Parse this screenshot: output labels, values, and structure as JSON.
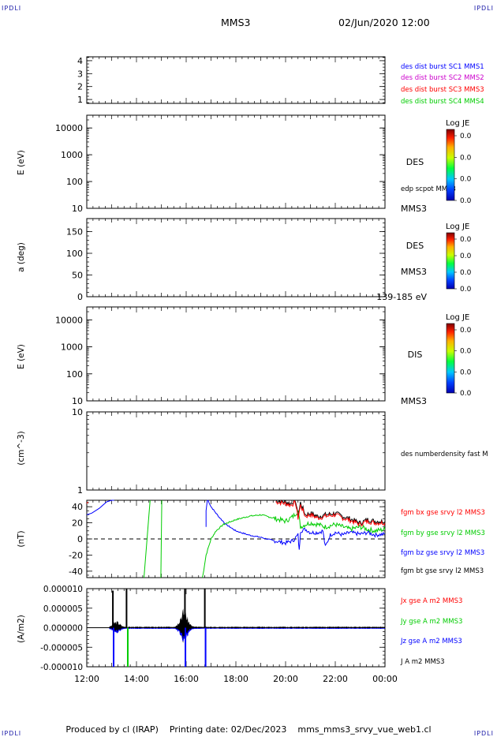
{
  "header": {
    "left_tag": "IPDLI",
    "right_tag": "IPDLI",
    "spacecraft": "MMS3",
    "datetime": "02/Jun/2020 12:00",
    "bottom_left_tag": "IPDLI",
    "bottom_right_tag": "IPDLI"
  },
  "footer": {
    "produced": "Produced by cl (IRAP)",
    "printing": "Printing date: 02/Dec/2023",
    "product": "mms_mms3_srvy_vue_web1.cl"
  },
  "time_axis": {
    "ticks": [
      "12:00",
      "14:00",
      "16:00",
      "18:00",
      "20:00",
      "22:00",
      "00:00"
    ],
    "range_hours": [
      12,
      24
    ]
  },
  "colors": {
    "mms1": "#0000ff",
    "mms2": "#cc00cc",
    "mms3": "#ff0000",
    "mms4": "#00cc00",
    "bx": "#ff0000",
    "by": "#00cc00",
    "bz": "#0000ff",
    "bt": "#000000"
  },
  "chart_data": [
    {
      "type": "line",
      "id": "burst",
      "ylabel": "",
      "yticks": [
        "4",
        "3",
        "2",
        "1"
      ],
      "yrange": [
        0.7,
        4.3
      ],
      "legend": [
        {
          "label": "des dist burst SC1 MMS1",
          "color": "#0000ff"
        },
        {
          "label": "des dist burst SC2 MMS2",
          "color": "#cc00cc"
        },
        {
          "label": "des dist burst SC3 MMS3",
          "color": "#ff0000"
        },
        {
          "label": "des dist burst SC4 MMS4",
          "color": "#00cc00"
        }
      ],
      "series": []
    },
    {
      "type": "heatmap",
      "id": "des_energy",
      "ylabel": "E (eV)",
      "yscale": "log",
      "yticks": [
        "10000",
        "1000",
        "100",
        "10"
      ],
      "yrange": [
        10,
        30000
      ],
      "right_labels": [
        "DES",
        "edp scpot MMS3",
        "MMS3"
      ],
      "colorbar": {
        "title": "Log JE",
        "ticks": [
          "0.0",
          "0.0",
          "0.0",
          "0.0"
        ]
      },
      "values": []
    },
    {
      "type": "heatmap",
      "id": "des_pitch",
      "ylabel": "a (deg)",
      "yticks": [
        "150",
        "100",
        "50",
        "0"
      ],
      "yrange": [
        0,
        180
      ],
      "right_labels": [
        "DES",
        "MMS3",
        "139-185 eV"
      ],
      "colorbar": {
        "title": "Log JE",
        "ticks": [
          "0.0",
          "0.0",
          "0.0",
          "0.0"
        ]
      },
      "values": []
    },
    {
      "type": "heatmap",
      "id": "dis_energy",
      "ylabel": "E (eV)",
      "yscale": "log",
      "yticks": [
        "10000",
        "1000",
        "100",
        "10"
      ],
      "yrange": [
        10,
        30000
      ],
      "right_labels": [
        "DIS",
        "MMS3"
      ],
      "colorbar": {
        "title": "Log JE",
        "ticks": [
          "0.0",
          "0.0",
          "0.0",
          "0.0"
        ]
      },
      "values": []
    },
    {
      "type": "line",
      "id": "density",
      "ylabel": "(cm^-3)",
      "yscale": "log",
      "yticks": [
        "10",
        "1"
      ],
      "yrange": [
        1,
        10
      ],
      "legend": [
        {
          "label": "des numberdensity fast M",
          "color": "#000000"
        }
      ],
      "series": []
    },
    {
      "type": "line",
      "id": "fgm",
      "ylabel": "(nT)",
      "yticks": [
        "40",
        "20",
        "0",
        "-20",
        "-40"
      ],
      "yrange": [
        -48,
        48
      ],
      "zero_line": true,
      "legend": [
        {
          "label": "fgm bx gse srvy l2 MMS3",
          "color": "#ff0000"
        },
        {
          "label": "fgm by gse srvy l2 MMS3",
          "color": "#00cc00"
        },
        {
          "label": "fgm bz gse srvy l2 MMS3",
          "color": "#0000ff"
        },
        {
          "label": "fgm bt gse srvy l2 MMS3",
          "color": "#000000"
        }
      ],
      "series": [
        {
          "key": "bz",
          "color": "#0000ff",
          "x": [
            12.0,
            12.2,
            12.5,
            12.8,
            13.0,
            13.1
          ],
          "y": [
            30,
            32,
            38,
            46,
            50,
            52
          ]
        },
        {
          "key": "by",
          "color": "#00cc00",
          "x": [
            14.3,
            14.4,
            14.5,
            14.55
          ],
          "y": [
            -50,
            -10,
            30,
            50
          ]
        },
        {
          "key": "by",
          "color": "#00cc00",
          "x": [
            14.98,
            15.0,
            15.02
          ],
          "y": [
            -50,
            0,
            50
          ]
        },
        {
          "key": "bz",
          "color": "#0000ff",
          "x": [
            16.8,
            16.8,
            16.85
          ],
          "y": [
            15,
            35,
            50
          ]
        },
        {
          "key": "bz",
          "color": "#0000ff",
          "x": [
            16.85,
            17.0,
            17.3,
            17.6,
            18.0,
            18.5,
            19.0,
            19.5,
            20.0,
            20.3,
            20.5,
            20.55,
            20.6,
            20.8,
            21.0,
            21.3,
            21.5,
            21.6,
            21.8,
            22.0,
            22.3,
            22.6,
            23.0,
            23.3,
            23.6,
            24.0
          ],
          "y": [
            50,
            40,
            28,
            18,
            10,
            5,
            2,
            -2,
            -5,
            -2,
            5,
            -15,
            10,
            12,
            8,
            8,
            10,
            -10,
            5,
            8,
            5,
            8,
            6,
            8,
            5,
            6
          ]
        },
        {
          "key": "by",
          "color": "#00cc00",
          "x": [
            16.65,
            16.8,
            17.0,
            17.2,
            17.5,
            18.0,
            18.5,
            19.0,
            19.5,
            20.0,
            20.3,
            20.5,
            20.6,
            20.8,
            21.0,
            21.3,
            21.6,
            22.0,
            22.3,
            22.6,
            23.0,
            23.3,
            23.6,
            24.0
          ],
          "y": [
            -50,
            -20,
            0,
            10,
            18,
            24,
            28,
            30,
            26,
            22,
            28,
            35,
            15,
            18,
            20,
            18,
            15,
            18,
            15,
            12,
            15,
            12,
            10,
            12
          ]
        },
        {
          "key": "bt",
          "color": "#000000",
          "x": [
            19.6,
            20.0,
            20.2,
            20.4,
            20.5,
            20.6,
            20.8,
            21.0,
            21.3,
            21.6,
            22.0,
            22.3,
            22.6,
            23.0,
            23.3,
            23.6,
            24.0
          ],
          "y": [
            48,
            46,
            44,
            48,
            28,
            45,
            30,
            32,
            28,
            30,
            32,
            28,
            25,
            20,
            24,
            22,
            22
          ]
        },
        {
          "key": "bx",
          "color": "#ff0000",
          "x": [
            19.6,
            20.0,
            20.2,
            20.4,
            20.5,
            20.6,
            20.8,
            21.0,
            21.3,
            21.6,
            22.0,
            22.3,
            22.6,
            23.0,
            23.3,
            23.6,
            24.0
          ],
          "y": [
            46,
            44,
            42,
            45,
            26,
            42,
            28,
            30,
            26,
            28,
            30,
            26,
            23,
            18,
            22,
            20,
            20
          ]
        },
        {
          "key": "bx",
          "color": "#ff0000",
          "x": [
            12.0,
            12.05
          ],
          "y": [
            44,
            46
          ]
        }
      ]
    },
    {
      "type": "line",
      "id": "current",
      "ylabel": "(A/m2)",
      "yticks": [
        "0.000010",
        "0.000005",
        "0.000000",
        "-0.000005",
        "-0.000010"
      ],
      "yrange": [
        -1e-05,
        1e-05
      ],
      "legend": [
        {
          "label": "Jx gse A m2 MMS3",
          "color": "#ff0000"
        },
        {
          "label": "Jy gse A m2 MMS3",
          "color": "#00cc00"
        },
        {
          "label": "Jz gse A m2 MMS3",
          "color": "#0000ff"
        },
        {
          "label": "J A m2 MMS3",
          "color": "#000000"
        }
      ],
      "spikes": [
        {
          "x": 13.05,
          "color": "#000000",
          "y": 9.5e-06
        },
        {
          "x": 13.08,
          "color": "#0000ff",
          "y": -1e-05
        },
        {
          "x": 13.6,
          "color": "#000000",
          "y": 1e-05
        },
        {
          "x": 13.65,
          "color": "#00cc00",
          "y": -1e-05
        },
        {
          "x": 15.95,
          "color": "#000000",
          "y": 1e-05
        },
        {
          "x": 15.97,
          "color": "#0000ff",
          "y": -1e-05
        },
        {
          "x": 16.75,
          "color": "#000000",
          "y": 1e-05
        },
        {
          "x": 16.78,
          "color": "#0000ff",
          "y": -1e-05
        }
      ],
      "bumps": [
        {
          "center": 13.2,
          "width": 0.35,
          "peak": 1.6e-06
        },
        {
          "center": 15.9,
          "width": 0.4,
          "peak": 5e-06
        }
      ],
      "background_noise": 3e-07
    }
  ]
}
